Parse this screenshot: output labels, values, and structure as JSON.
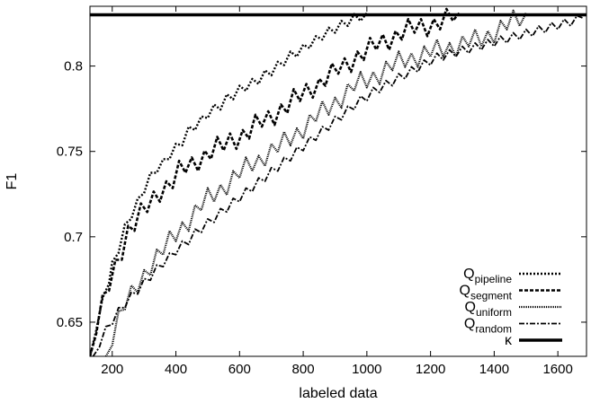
{
  "chart_data": {
    "type": "line",
    "title": "",
    "xlabel": "labeled data",
    "ylabel": "F1",
    "xlim": [
      130,
      1690
    ],
    "ylim": [
      0.63,
      0.835
    ],
    "xticks": [
      200,
      400,
      600,
      800,
      1000,
      1200,
      1400,
      1600
    ],
    "xtick_labels": [
      "200",
      "400",
      "600",
      "800",
      "1000",
      "1200",
      "1400",
      "1600"
    ],
    "yticks": [
      0.65,
      0.7,
      0.75,
      0.8
    ],
    "ytick_labels": [
      "0.65",
      "0.7",
      "0.75",
      "0.8"
    ],
    "grid": false,
    "legend_position": "bottom-right",
    "series": [
      {
        "name_main": "Q",
        "name_sub": "pipeline",
        "style": "dotted",
        "x": [
          130,
          150,
          170,
          190,
          200,
          220,
          240,
          260,
          280,
          300,
          320,
          340,
          360,
          380,
          400,
          420,
          440,
          460,
          480,
          500,
          520,
          540,
          560,
          580,
          600,
          620,
          640,
          660,
          680,
          700,
          720,
          740,
          760,
          780,
          800,
          820,
          840,
          860,
          880,
          900,
          920,
          940,
          960,
          980,
          1000
        ],
        "y": [
          0.63,
          0.648,
          0.662,
          0.675,
          0.683,
          0.693,
          0.705,
          0.713,
          0.72,
          0.728,
          0.735,
          0.74,
          0.743,
          0.748,
          0.752,
          0.756,
          0.762,
          0.765,
          0.768,
          0.772,
          0.775,
          0.777,
          0.781,
          0.783,
          0.786,
          0.788,
          0.79,
          0.792,
          0.795,
          0.797,
          0.8,
          0.803,
          0.806,
          0.808,
          0.81,
          0.813,
          0.815,
          0.818,
          0.82,
          0.822,
          0.824,
          0.826,
          0.828,
          0.829,
          0.831
        ]
      },
      {
        "name_main": "Q",
        "name_sub": "segment",
        "style": "dashed",
        "x": [
          130,
          150,
          170,
          190,
          210,
          230,
          250,
          270,
          290,
          310,
          330,
          350,
          370,
          390,
          410,
          430,
          450,
          470,
          490,
          510,
          530,
          550,
          570,
          590,
          610,
          630,
          650,
          670,
          690,
          710,
          730,
          750,
          770,
          790,
          810,
          830,
          850,
          870,
          890,
          910,
          930,
          950,
          970,
          990,
          1010,
          1030,
          1050,
          1070,
          1090,
          1110,
          1130,
          1150,
          1170,
          1190,
          1210,
          1230,
          1250,
          1270,
          1290
        ],
        "y": [
          0.63,
          0.648,
          0.66,
          0.671,
          0.682,
          0.693,
          0.704,
          0.708,
          0.713,
          0.717,
          0.722,
          0.727,
          0.73,
          0.733,
          0.738,
          0.74,
          0.742,
          0.745,
          0.748,
          0.75,
          0.752,
          0.753,
          0.756,
          0.758,
          0.76,
          0.762,
          0.765,
          0.767,
          0.769,
          0.772,
          0.775,
          0.777,
          0.78,
          0.782,
          0.785,
          0.788,
          0.79,
          0.793,
          0.795,
          0.798,
          0.8,
          0.803,
          0.806,
          0.808,
          0.81,
          0.812,
          0.814,
          0.816,
          0.818,
          0.82,
          0.821,
          0.822,
          0.823,
          0.824,
          0.825,
          0.826,
          0.827,
          0.829,
          0.831
        ]
      },
      {
        "name_main": "Q",
        "name_sub": "uniform",
        "style": "densely-dotted",
        "x": [
          180,
          200,
          220,
          240,
          260,
          280,
          300,
          320,
          340,
          360,
          380,
          400,
          420,
          440,
          460,
          480,
          500,
          520,
          540,
          560,
          580,
          600,
          620,
          640,
          660,
          680,
          700,
          720,
          740,
          760,
          780,
          800,
          820,
          840,
          860,
          880,
          900,
          920,
          940,
          960,
          980,
          1000,
          1020,
          1040,
          1060,
          1080,
          1100,
          1120,
          1140,
          1160,
          1180,
          1200,
          1220,
          1240,
          1260,
          1280,
          1300,
          1320,
          1340,
          1360,
          1380,
          1400,
          1420,
          1440,
          1460,
          1480,
          1500
        ],
        "y": [
          0.63,
          0.643,
          0.652,
          0.66,
          0.665,
          0.672,
          0.678,
          0.684,
          0.688,
          0.692,
          0.697,
          0.702,
          0.706,
          0.71,
          0.714,
          0.718,
          0.722,
          0.725,
          0.728,
          0.731,
          0.734,
          0.737,
          0.74,
          0.743,
          0.745,
          0.748,
          0.75,
          0.752,
          0.755,
          0.758,
          0.761,
          0.764,
          0.767,
          0.77,
          0.773,
          0.776,
          0.779,
          0.782,
          0.785,
          0.788,
          0.79,
          0.792,
          0.794,
          0.796,
          0.798,
          0.8,
          0.802,
          0.804,
          0.805,
          0.806,
          0.807,
          0.808,
          0.809,
          0.81,
          0.811,
          0.812,
          0.813,
          0.814,
          0.815,
          0.816,
          0.818,
          0.82,
          0.822,
          0.824,
          0.826,
          0.828,
          0.831
        ]
      },
      {
        "name_main": "Q",
        "name_sub": "random",
        "style": "dash-dot",
        "x": [
          140,
          160,
          180,
          200,
          220,
          240,
          260,
          280,
          300,
          320,
          340,
          360,
          380,
          400,
          420,
          440,
          460,
          480,
          500,
          520,
          540,
          560,
          580,
          600,
          620,
          640,
          660,
          680,
          700,
          720,
          740,
          760,
          780,
          800,
          820,
          840,
          860,
          880,
          900,
          920,
          940,
          960,
          980,
          1000,
          1020,
          1040,
          1060,
          1080,
          1100,
          1120,
          1140,
          1160,
          1180,
          1200,
          1220,
          1240,
          1260,
          1280,
          1300,
          1320,
          1340,
          1360,
          1380,
          1400,
          1420,
          1440,
          1460,
          1480,
          1500,
          1520,
          1540,
          1560,
          1580,
          1600,
          1620,
          1640,
          1660,
          1680
        ],
        "y": [
          0.63,
          0.638,
          0.645,
          0.651,
          0.656,
          0.661,
          0.665,
          0.669,
          0.673,
          0.677,
          0.681,
          0.685,
          0.688,
          0.692,
          0.695,
          0.698,
          0.702,
          0.705,
          0.708,
          0.711,
          0.714,
          0.717,
          0.72,
          0.723,
          0.726,
          0.729,
          0.732,
          0.735,
          0.738,
          0.741,
          0.744,
          0.747,
          0.75,
          0.753,
          0.756,
          0.759,
          0.762,
          0.765,
          0.768,
          0.771,
          0.774,
          0.777,
          0.78,
          0.782,
          0.785,
          0.787,
          0.789,
          0.791,
          0.793,
          0.795,
          0.797,
          0.799,
          0.801,
          0.803,
          0.805,
          0.806,
          0.807,
          0.808,
          0.809,
          0.81,
          0.811,
          0.812,
          0.813,
          0.814,
          0.815,
          0.816,
          0.817,
          0.818,
          0.819,
          0.82,
          0.821,
          0.822,
          0.823,
          0.824,
          0.825,
          0.826,
          0.827,
          0.828
        ]
      },
      {
        "name_main": "κ",
        "name_sub": "",
        "style": "solid-thick",
        "x": [
          130,
          1690
        ],
        "y": [
          0.83,
          0.83
        ]
      }
    ]
  }
}
